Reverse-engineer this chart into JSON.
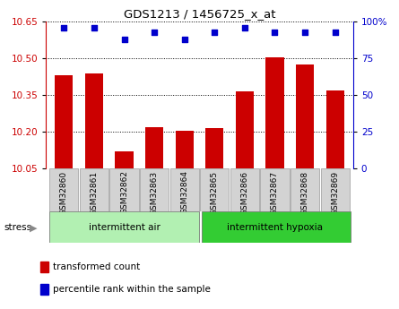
{
  "title": "GDS1213 / 1456725_x_at",
  "samples": [
    "GSM32860",
    "GSM32861",
    "GSM32862",
    "GSM32863",
    "GSM32864",
    "GSM32865",
    "GSM32866",
    "GSM32867",
    "GSM32868",
    "GSM32869"
  ],
  "transformed_count": [
    10.43,
    10.44,
    10.12,
    10.22,
    10.205,
    10.215,
    10.365,
    10.505,
    10.475,
    10.37
  ],
  "percentile_rank": [
    96,
    96,
    88,
    93,
    88,
    93,
    96,
    93,
    93,
    93
  ],
  "ylim_left": [
    10.05,
    10.65
  ],
  "ylim_right": [
    0,
    100
  ],
  "yticks_left": [
    10.05,
    10.2,
    10.35,
    10.5,
    10.65
  ],
  "yticks_right": [
    0,
    25,
    50,
    75,
    100
  ],
  "bar_color": "#cc0000",
  "dot_color": "#0000cc",
  "group1_label": "intermittent air",
  "group2_label": "intermittent hypoxia",
  "group1_color": "#b2f0b2",
  "group2_color": "#33cc33",
  "tick_label_bg": "#d3d3d3",
  "legend_bar_label": "transformed count",
  "legend_dot_label": "percentile rank within the sample",
  "stress_label": "stress"
}
